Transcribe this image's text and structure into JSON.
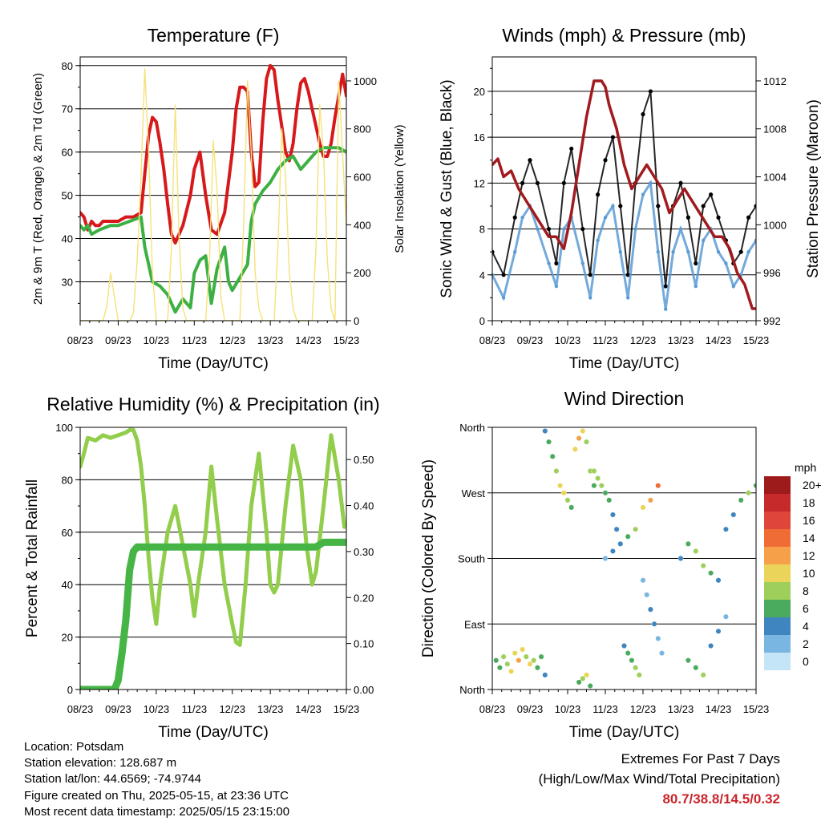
{
  "xticks": [
    "08/23",
    "09/23",
    "10/23",
    "11/23",
    "12/23",
    "13/23",
    "14/23",
    "15/23"
  ],
  "xlabel": "Time (Day/UTC)",
  "colors": {
    "temp2m": "#d7191c",
    "temp9m": "#f08a24",
    "dewpoint": "#3cb043",
    "solar": "#f5e27a",
    "wind": "#5b9bd5",
    "gust": "#000000",
    "pressure": "#a11a1e",
    "rh": "#92cd4c",
    "precip": "#46b546"
  },
  "chart_data": [
    {
      "id": "temperature",
      "type": "line",
      "title": "Temperature (F)",
      "xlabel": "Time (Day/UTC)",
      "ylabel": "2m & 9m T (Red, Orange) & 2m Td (Green)",
      "y2label": "Solar Insolation (Yellow)",
      "ylim": [
        21,
        82
      ],
      "yticks": [
        30,
        40,
        50,
        60,
        70,
        80
      ],
      "y2lim": [
        0,
        1100
      ],
      "y2ticks": [
        0,
        200,
        400,
        600,
        800,
        1000
      ],
      "grid": true,
      "series": [
        {
          "axis": "left",
          "color": "temp2m",
          "x": [
            0,
            0.1,
            0.2,
            0.3,
            0.4,
            0.5,
            0.6,
            0.8,
            1.0,
            1.2,
            1.4,
            1.6,
            1.7,
            1.8,
            1.9,
            2.0,
            2.1,
            2.2,
            2.3,
            2.4,
            2.5,
            2.7,
            2.9,
            3.0,
            3.15,
            3.3,
            3.45,
            3.6,
            3.8,
            4.0,
            4.1,
            4.2,
            4.3,
            4.4,
            4.5,
            4.6,
            4.7,
            4.8,
            4.9,
            5.0,
            5.1,
            5.2,
            5.3,
            5.4,
            5.5,
            5.6,
            5.7,
            5.8,
            5.9,
            6.0,
            6.1,
            6.2,
            6.3,
            6.4,
            6.5,
            6.6,
            6.7,
            6.8,
            6.9,
            7.0
          ],
          "y": [
            46,
            45,
            42,
            44,
            43,
            43,
            44,
            44,
            44,
            45,
            45,
            46,
            55,
            64,
            68,
            67,
            62,
            56,
            48,
            41,
            39,
            43,
            50,
            56,
            60,
            50,
            42,
            41,
            46,
            60,
            70,
            75,
            75,
            74,
            60,
            52,
            53,
            67,
            77,
            80,
            79,
            72,
            66,
            60,
            58,
            62,
            70,
            76,
            77,
            74,
            70,
            66,
            62,
            59,
            59,
            62,
            68,
            73,
            78,
            73
          ]
        },
        {
          "axis": "left",
          "color": "dewpoint",
          "x": [
            0,
            0.1,
            0.2,
            0.3,
            0.5,
            0.8,
            1.0,
            1.3,
            1.6,
            1.7,
            1.8,
            1.9,
            2.1,
            2.3,
            2.5,
            2.7,
            2.9,
            3.0,
            3.15,
            3.3,
            3.45,
            3.6,
            3.8,
            3.9,
            4.0,
            4.2,
            4.4,
            4.5,
            4.6,
            4.8,
            5.0,
            5.2,
            5.4,
            5.6,
            5.8,
            6.0,
            6.2,
            6.4,
            6.6,
            6.8,
            7.0
          ],
          "y": [
            43,
            42,
            43,
            41,
            42,
            43,
            43,
            44,
            45,
            38,
            34,
            30,
            29,
            27,
            23,
            26,
            24,
            32,
            35,
            36,
            25,
            33,
            38,
            30,
            28,
            31,
            34,
            44,
            48,
            51,
            53,
            56,
            58,
            59,
            56,
            58,
            60,
            61,
            61,
            61,
            60
          ]
        },
        {
          "axis": "right",
          "color": "solar",
          "x": [
            0,
            0.6,
            0.7,
            0.8,
            0.9,
            1.0,
            1.3,
            1.4,
            1.5,
            1.6,
            1.7,
            1.8,
            1.9,
            2.0,
            2.3,
            2.4,
            2.5,
            2.6,
            2.7,
            2.8,
            3.3,
            3.4,
            3.5,
            3.6,
            3.7,
            3.8,
            4.2,
            4.3,
            4.4,
            4.5,
            4.6,
            4.7,
            4.8,
            5.1,
            5.2,
            5.3,
            5.4,
            5.5,
            5.6,
            5.7,
            5.8,
            6.1,
            6.2,
            6.3,
            6.4,
            6.5,
            6.6,
            6.7,
            6.8,
            7.0
          ],
          "y": [
            0,
            0,
            60,
            200,
            100,
            0,
            0,
            30,
            250,
            600,
            1050,
            700,
            200,
            0,
            0,
            300,
            900,
            350,
            50,
            0,
            0,
            250,
            750,
            550,
            100,
            0,
            0,
            400,
            1000,
            700,
            200,
            50,
            0,
            0,
            300,
            800,
            600,
            200,
            50,
            0,
            0,
            0,
            300,
            900,
            700,
            250,
            50,
            0,
            1000,
            400
          ]
        }
      ]
    },
    {
      "id": "winds",
      "type": "scatter",
      "title": "Winds (mph) & Pressure (mb)",
      "xlabel": "Time (Day/UTC)",
      "ylabel": "Sonic Wind & Gust (Blue, Black)",
      "y2label": "Station Pressure (Maroon)",
      "ylim": [
        0,
        23
      ],
      "yticks": [
        0,
        4,
        8,
        12,
        16,
        20
      ],
      "y2lim": [
        992,
        1014
      ],
      "y2ticks": [
        992,
        996,
        1000,
        1004,
        1008,
        1012
      ],
      "grid": true,
      "series": [
        {
          "axis": "left",
          "color": "gust",
          "x": [
            0,
            0.3,
            0.6,
            0.8,
            1.0,
            1.2,
            1.5,
            1.7,
            1.9,
            2.1,
            2.4,
            2.6,
            2.8,
            3.0,
            3.2,
            3.4,
            3.6,
            3.8,
            4.0,
            4.2,
            4.4,
            4.6,
            4.8,
            5.0,
            5.2,
            5.4,
            5.6,
            5.8,
            6.0,
            6.2,
            6.4,
            6.6,
            6.8,
            7.0
          ],
          "y": [
            6,
            4,
            9,
            12,
            14,
            12,
            8,
            5,
            12,
            15,
            8,
            4,
            11,
            14,
            16,
            10,
            4,
            12,
            18,
            20,
            10,
            3,
            10,
            12,
            9,
            5,
            10,
            11,
            9,
            7,
            5,
            6,
            9,
            10
          ]
        },
        {
          "axis": "left",
          "color": "wind",
          "x": [
            0,
            0.3,
            0.6,
            0.8,
            1.0,
            1.2,
            1.5,
            1.7,
            1.9,
            2.1,
            2.4,
            2.6,
            2.8,
            3.0,
            3.2,
            3.4,
            3.6,
            3.8,
            4.0,
            4.2,
            4.4,
            4.6,
            4.8,
            5.0,
            5.2,
            5.4,
            5.6,
            5.8,
            6.0,
            6.2,
            6.4,
            6.6,
            6.8,
            7.0
          ],
          "y": [
            4,
            2,
            6,
            9,
            10,
            8,
            5,
            3,
            8,
            9,
            5,
            2,
            7,
            9,
            10,
            6,
            2,
            8,
            11,
            12,
            6,
            1,
            6,
            8,
            6,
            3,
            7,
            8,
            6,
            5,
            3,
            4,
            6,
            7
          ]
        },
        {
          "axis": "right",
          "color": "pressure",
          "x": [
            0,
            0.15,
            0.3,
            0.5,
            0.7,
            0.9,
            1.1,
            1.3,
            1.5,
            1.7,
            1.9,
            2.1,
            2.3,
            2.5,
            2.7,
            2.9,
            3.0,
            3.1,
            3.3,
            3.5,
            3.7,
            3.9,
            4.1,
            4.3,
            4.5,
            4.7,
            4.9,
            5.1,
            5.3,
            5.5,
            5.7,
            5.9,
            6.1,
            6.3,
            6.5,
            6.7,
            6.9,
            7.0
          ],
          "y": [
            1005,
            1005.5,
            1004,
            1004.5,
            1003,
            1002,
            1001,
            1000,
            999,
            999,
            998,
            1001,
            1005,
            1009,
            1012,
            1012,
            1011.5,
            1010,
            1008,
            1005,
            1003,
            1004,
            1005,
            1004,
            1003,
            1001,
            1002,
            1003,
            1002,
            1001,
            1000,
            999,
            999,
            998,
            996,
            995,
            993,
            993
          ]
        }
      ]
    },
    {
      "id": "humidity",
      "type": "line",
      "title": "Relative Humidity (%) & Precipitation (in)",
      "xlabel": "Time (Day/UTC)",
      "ylabel": "Percent & Total Rainfall",
      "ylim": [
        0,
        100
      ],
      "yticks": [
        0,
        20,
        40,
        60,
        80,
        100
      ],
      "y2lim": [
        0,
        0.57
      ],
      "y2ticks": [
        0.0,
        0.1,
        0.2,
        0.3,
        0.4,
        0.5
      ],
      "y2ticklabels": [
        "0.00",
        "0.10",
        "0.20",
        "0.30",
        "0.40",
        "0.50"
      ],
      "grid": true,
      "series": [
        {
          "axis": "left",
          "color": "rh",
          "x": [
            0,
            0.1,
            0.2,
            0.4,
            0.6,
            0.8,
            1.0,
            1.2,
            1.3,
            1.4,
            1.5,
            1.6,
            1.7,
            1.8,
            1.9,
            2.0,
            2.1,
            2.3,
            2.5,
            2.7,
            2.9,
            3.0,
            3.1,
            3.3,
            3.45,
            3.6,
            3.8,
            4.0,
            4.1,
            4.2,
            4.35,
            4.5,
            4.7,
            4.9,
            5.0,
            5.1,
            5.2,
            5.4,
            5.6,
            5.8,
            5.95,
            6.1,
            6.2,
            6.4,
            6.6,
            6.8,
            6.95,
            7.0
          ],
          "y": [
            85,
            90,
            96,
            95,
            97,
            96,
            97,
            98,
            99,
            99,
            95,
            85,
            70,
            50,
            35,
            25,
            40,
            60,
            70,
            55,
            40,
            28,
            40,
            60,
            85,
            65,
            40,
            25,
            18,
            17,
            40,
            70,
            90,
            60,
            40,
            37,
            40,
            70,
            93,
            80,
            55,
            40,
            45,
            70,
            97,
            80,
            62,
            63
          ]
        },
        {
          "axis": "right",
          "color": "precip",
          "x": [
            0,
            0.5,
            0.9,
            1.0,
            1.1,
            1.2,
            1.3,
            1.4,
            1.5,
            6.2,
            6.4,
            7.0
          ],
          "y": [
            0.0,
            0.0,
            0.0,
            0.02,
            0.08,
            0.15,
            0.26,
            0.3,
            0.31,
            0.31,
            0.32,
            0.32
          ]
        }
      ]
    },
    {
      "id": "winddir",
      "type": "scatter",
      "title": "Wind Direction",
      "xlabel": "Time (Day/UTC)",
      "ylabel": "Direction (Colored By Speed)",
      "ylim": [
        0,
        360
      ],
      "yticks": [
        0,
        90,
        180,
        270,
        360
      ],
      "yticklabels": [
        "North",
        "East",
        "South",
        "West",
        "North"
      ],
      "grid": true,
      "colorbar": {
        "title": "mph",
        "labels": [
          "20+",
          "18",
          "16",
          "14",
          "12",
          "10",
          "8",
          "6",
          "4",
          "2",
          "0"
        ],
        "colors": [
          "#9e1b1b",
          "#c62a2a",
          "#e0453a",
          "#ef6d35",
          "#f6a04a",
          "#ead55a",
          "#9fcf5b",
          "#4aab5f",
          "#3f86c0",
          "#7ab6e2",
          "#c4e4f7"
        ]
      },
      "series": [
        {
          "x": [
            0.1,
            0.2,
            0.3,
            0.4,
            0.5,
            0.6,
            0.7,
            0.8,
            0.9,
            1.0,
            1.1,
            1.2,
            1.3,
            1.4
          ],
          "y": [
            40,
            30,
            45,
            35,
            25,
            50,
            40,
            55,
            45,
            35,
            40,
            30,
            45,
            20
          ],
          "speed": [
            5,
            6,
            8,
            7,
            9,
            10,
            11,
            9,
            8,
            10,
            7,
            6,
            5,
            4
          ]
        },
        {
          "x": [
            1.4,
            1.5,
            1.6,
            1.7,
            1.8,
            1.9,
            2.0,
            2.1,
            2.2,
            2.3,
            2.4,
            2.5,
            2.6,
            2.7
          ],
          "y": [
            355,
            340,
            320,
            300,
            280,
            270,
            260,
            250,
            330,
            345,
            355,
            340,
            300,
            280
          ],
          "speed": [
            4,
            5,
            6,
            8,
            9,
            10,
            8,
            6,
            9,
            11,
            10,
            8,
            7,
            6
          ]
        },
        {
          "x": [
            2.3,
            2.4,
            2.5,
            2.6,
            2.7,
            2.8,
            2.9,
            3.0,
            3.1,
            3.2,
            3.3,
            3.4
          ],
          "y": [
            10,
            15,
            20,
            5,
            300,
            290,
            280,
            270,
            260,
            240,
            220,
            200
          ],
          "speed": [
            6,
            8,
            9,
            5,
            7,
            8,
            7,
            6,
            5,
            4,
            3,
            2
          ]
        },
        {
          "x": [
            3.0,
            3.2,
            3.4,
            3.6,
            3.8,
            4.0,
            4.2,
            4.4
          ],
          "y": [
            180,
            190,
            200,
            210,
            220,
            250,
            260,
            280
          ],
          "speed": [
            2,
            3,
            4,
            6,
            8,
            10,
            12,
            14
          ]
        },
        {
          "x": [
            3.5,
            3.6,
            3.7,
            3.8,
            3.9,
            4.0,
            4.1,
            4.2,
            4.3,
            4.4,
            4.5
          ],
          "y": [
            60,
            50,
            40,
            30,
            20,
            150,
            130,
            110,
            90,
            70,
            50
          ],
          "speed": [
            3,
            5,
            6,
            7,
            8,
            2,
            2,
            3,
            3,
            2,
            2
          ]
        },
        {
          "x": [
            5.0,
            5.2,
            5.4,
            5.6,
            5.8,
            6.0,
            6.2,
            6.4,
            6.6,
            6.8,
            7.0
          ],
          "y": [
            180,
            200,
            190,
            170,
            160,
            150,
            220,
            240,
            260,
            270,
            280
          ],
          "speed": [
            4,
            6,
            8,
            7,
            6,
            4,
            3,
            4,
            6,
            7,
            5
          ]
        },
        {
          "x": [
            5.2,
            5.4,
            5.6,
            5.8,
            6.0,
            6.2
          ],
          "y": [
            40,
            30,
            20,
            60,
            80,
            100
          ],
          "speed": [
            5,
            6,
            7,
            4,
            3,
            2
          ]
        }
      ]
    }
  ],
  "info": {
    "location": "Location: Potsdam",
    "elevation": "Station elevation: 128.687 m",
    "latlon": "Station lat/lon: 44.6569; -74.9744",
    "created": "Figure created on Thu, 2025-05-15, at 23:36 UTC",
    "recent": "Most recent data timestamp: 2025/05/15 23:15:00"
  },
  "extremes": {
    "title": "Extremes For Past 7 Days",
    "subtitle": "(High/Low/Max Wind/Total Precipitation)",
    "values": "80.7/38.8/14.5/0.32"
  }
}
